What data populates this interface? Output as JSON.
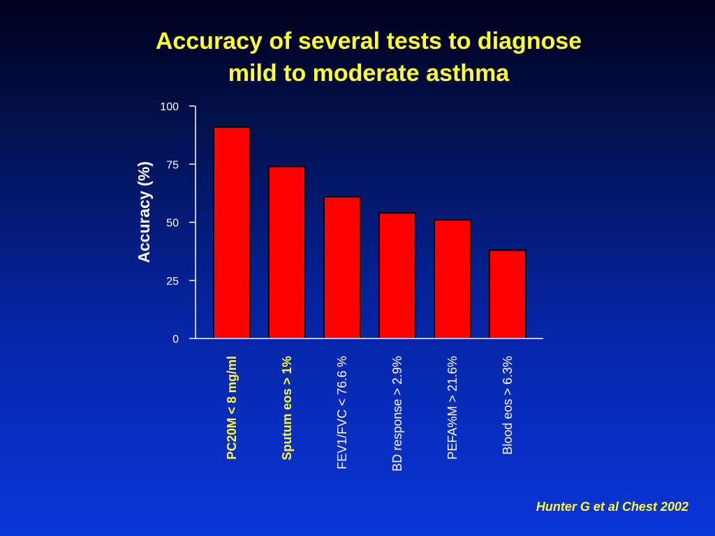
{
  "slide": {
    "title_line1": "Accuracy of several tests to diagnose",
    "title_line2": "mild to moderate asthma",
    "source": "Hunter G et al Chest 2002"
  },
  "colors": {
    "bar_fill": "#ff0000",
    "bar_stroke": "#000000",
    "highlight_label": "#ffff33",
    "text": "#ffffff",
    "axis": "#ffffff"
  },
  "chart_data": {
    "type": "bar",
    "title": "",
    "xlabel": "",
    "ylabel": "Accuracy (%)",
    "ylim": [
      0,
      100
    ],
    "yticks": [
      0,
      25,
      50,
      75,
      100
    ],
    "grid": false,
    "categories": [
      "PC20M < 8 mg/ml",
      "Sputum eos > 1%",
      "FEV1/FVC < 76.6 %",
      "BD response > 2.9%",
      "PEFA%M  > 21.6%",
      "Blood eos > 6.3%"
    ],
    "highlighted": [
      true,
      true,
      false,
      false,
      false,
      false
    ],
    "values": [
      91,
      74,
      61,
      54,
      51,
      38
    ]
  }
}
